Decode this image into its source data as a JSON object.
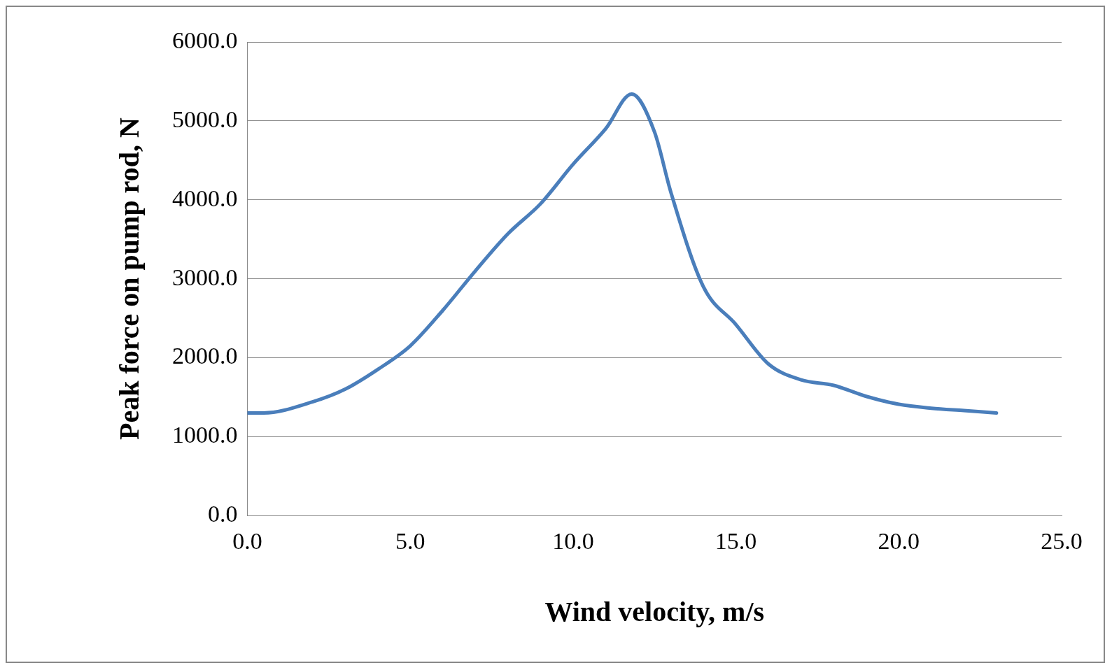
{
  "chart_data": {
    "type": "line",
    "xlabel": "Wind velocity, m/s",
    "ylabel": "Peak force on pump rod, N",
    "x": [
      0,
      0.5,
      2,
      3,
      4,
      5,
      6,
      7,
      8,
      9,
      10,
      11,
      11.8,
      12.5,
      13,
      14,
      15,
      16,
      17,
      18,
      19,
      20,
      21,
      22,
      23
    ],
    "series": [
      {
        "color": "#4a7ebb",
        "values": [
          1300,
          1300,
          1440,
          1600,
          1850,
          2150,
          2600,
          3100,
          3570,
          3950,
          4450,
          4900,
          5340,
          4860,
          4100,
          2900,
          2420,
          1920,
          1720,
          1650,
          1510,
          1410,
          1360,
          1330,
          1300
        ]
      }
    ],
    "xlim": [
      0,
      25
    ],
    "ylim": [
      0,
      6000
    ],
    "xticks": [
      {
        "value": 0,
        "label": "0.0"
      },
      {
        "value": 5,
        "label": "5.0"
      },
      {
        "value": 10,
        "label": "10.0"
      },
      {
        "value": 15,
        "label": "15.0"
      },
      {
        "value": 20,
        "label": "20.0"
      },
      {
        "value": 25,
        "label": "25.0"
      }
    ],
    "yticks": [
      {
        "value": 0,
        "label": "0.0"
      },
      {
        "value": 1000,
        "label": "1000.0"
      },
      {
        "value": 2000,
        "label": "2000.0"
      },
      {
        "value": 3000,
        "label": "3000.0"
      },
      {
        "value": 4000,
        "label": "4000.0"
      },
      {
        "value": 5000,
        "label": "5000.0"
      },
      {
        "value": 6000,
        "label": "6000.0"
      }
    ],
    "grid": "y",
    "legend": false,
    "marker": "none",
    "line_style": "solid"
  }
}
